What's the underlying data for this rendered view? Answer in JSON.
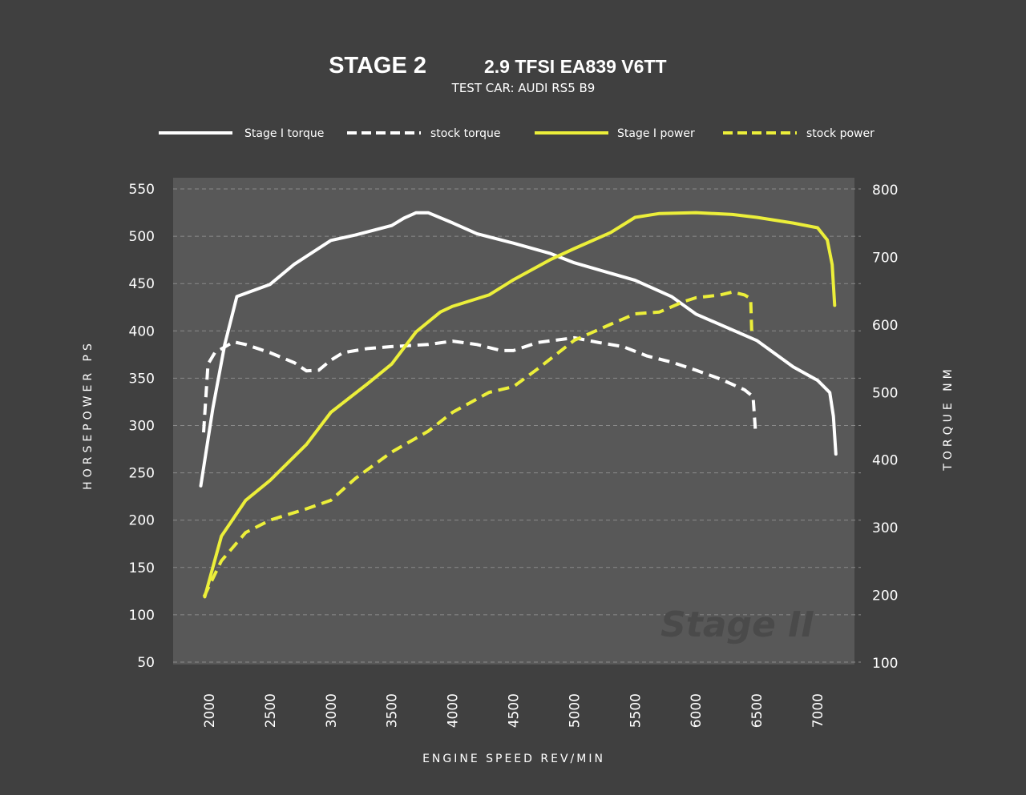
{
  "chart_data": {
    "type": "line",
    "title": "STAGE 2",
    "title_suffix": "2.9 TFSI EA839 V6TT",
    "subtitle": "TEST CAR: AUDI RS5 B9",
    "xlabel": "ENGINE SPEED REV/MIN",
    "ylabel": "HORSEPOWER PS",
    "y2label": "TORQUE NM",
    "xlim": [
      1850,
      7300
    ],
    "ylim": [
      50,
      550
    ],
    "y2lim": [
      100,
      800
    ],
    "xticks": [
      "2000",
      "2500",
      "3000",
      "3500",
      "4000",
      "4500",
      "5000",
      "5500",
      "6000",
      "6500",
      "7000"
    ],
    "yticks": [
      "550",
      "500",
      "450",
      "400",
      "350",
      "300",
      "250",
      "200",
      "150",
      "100",
      "50"
    ],
    "y2ticks": [
      "800",
      "700",
      "600",
      "500",
      "400",
      "300",
      "200",
      "100"
    ],
    "grid": true,
    "legend_position": "top",
    "watermark": "Stage II",
    "colors": {
      "background": "#404040",
      "plot": "#585858",
      "white": "#ffffff",
      "yellow": "#ecef3a"
    },
    "series": [
      {
        "name": "Stage I torque",
        "axis": "right",
        "color": "#ffffff",
        "dashed": false,
        "x": [
          1931,
          2030,
          2128,
          2227,
          2500,
          2700,
          3000,
          3200,
          3500,
          3600,
          3700,
          3800,
          4000,
          4200,
          4500,
          4800,
          5000,
          5500,
          5800,
          6000,
          6500,
          6800,
          7000,
          7100,
          7130,
          7150
        ],
        "y": [
          362,
          477,
          571,
          642,
          660,
          690,
          725,
          733,
          747,
          758,
          766,
          766,
          751,
          735,
          721,
          706,
          692,
          666,
          642,
          616,
          577,
          538,
          518,
          500,
          465,
          409
        ]
      },
      {
        "name": "stock torque",
        "axis": "right",
        "color": "#ffffff",
        "dashed": true,
        "x": [
          1954,
          1990,
          2046,
          2200,
          2300,
          2500,
          2700,
          2800,
          2900,
          3000,
          3100,
          3300,
          3500,
          3800,
          4000,
          4200,
          4400,
          4500,
          4700,
          5000,
          5200,
          5400,
          5600,
          5800,
          6000,
          6200,
          6400,
          6470,
          6490
        ],
        "y": [
          441,
          542,
          559,
          575,
          571,
          559,
          544,
          532,
          533,
          548,
          559,
          565,
          568,
          571,
          576,
          571,
          562,
          562,
          574,
          581,
          574,
          568,
          554,
          545,
          533,
          520,
          504,
          494,
          441
        ]
      },
      {
        "name": "Stage I power",
        "axis": "left",
        "color": "#ecef3a",
        "dashed": false,
        "x": [
          1964,
          2100,
          2300,
          2500,
          2800,
          3000,
          3300,
          3500,
          3700,
          3900,
          4000,
          4300,
          4500,
          4800,
          5000,
          5300,
          5500,
          5700,
          6000,
          6300,
          6500,
          6800,
          7000,
          7080,
          7120,
          7140
        ],
        "y": [
          119,
          183,
          221,
          242,
          280,
          314,
          344,
          365,
          399,
          420,
          426,
          438,
          454,
          475,
          487,
          504,
          520,
          524,
          525,
          523,
          520,
          514,
          509,
          496,
          470,
          427
        ]
      },
      {
        "name": "stock power",
        "axis": "left",
        "color": "#ecef3a",
        "dashed": true,
        "x": [
          1957,
          2100,
          2300,
          2500,
          2800,
          3000,
          3200,
          3500,
          3800,
          4000,
          4300,
          4500,
          4700,
          5000,
          5300,
          5500,
          5700,
          5900,
          6000,
          6200,
          6300,
          6400,
          6450,
          6460
        ],
        "y": [
          119,
          157,
          187,
          200,
          212,
          221,
          244,
          272,
          294,
          314,
          335,
          341,
          360,
          390,
          407,
          418,
          420,
          431,
          435,
          438,
          441,
          438,
          434,
          394
        ]
      }
    ]
  }
}
